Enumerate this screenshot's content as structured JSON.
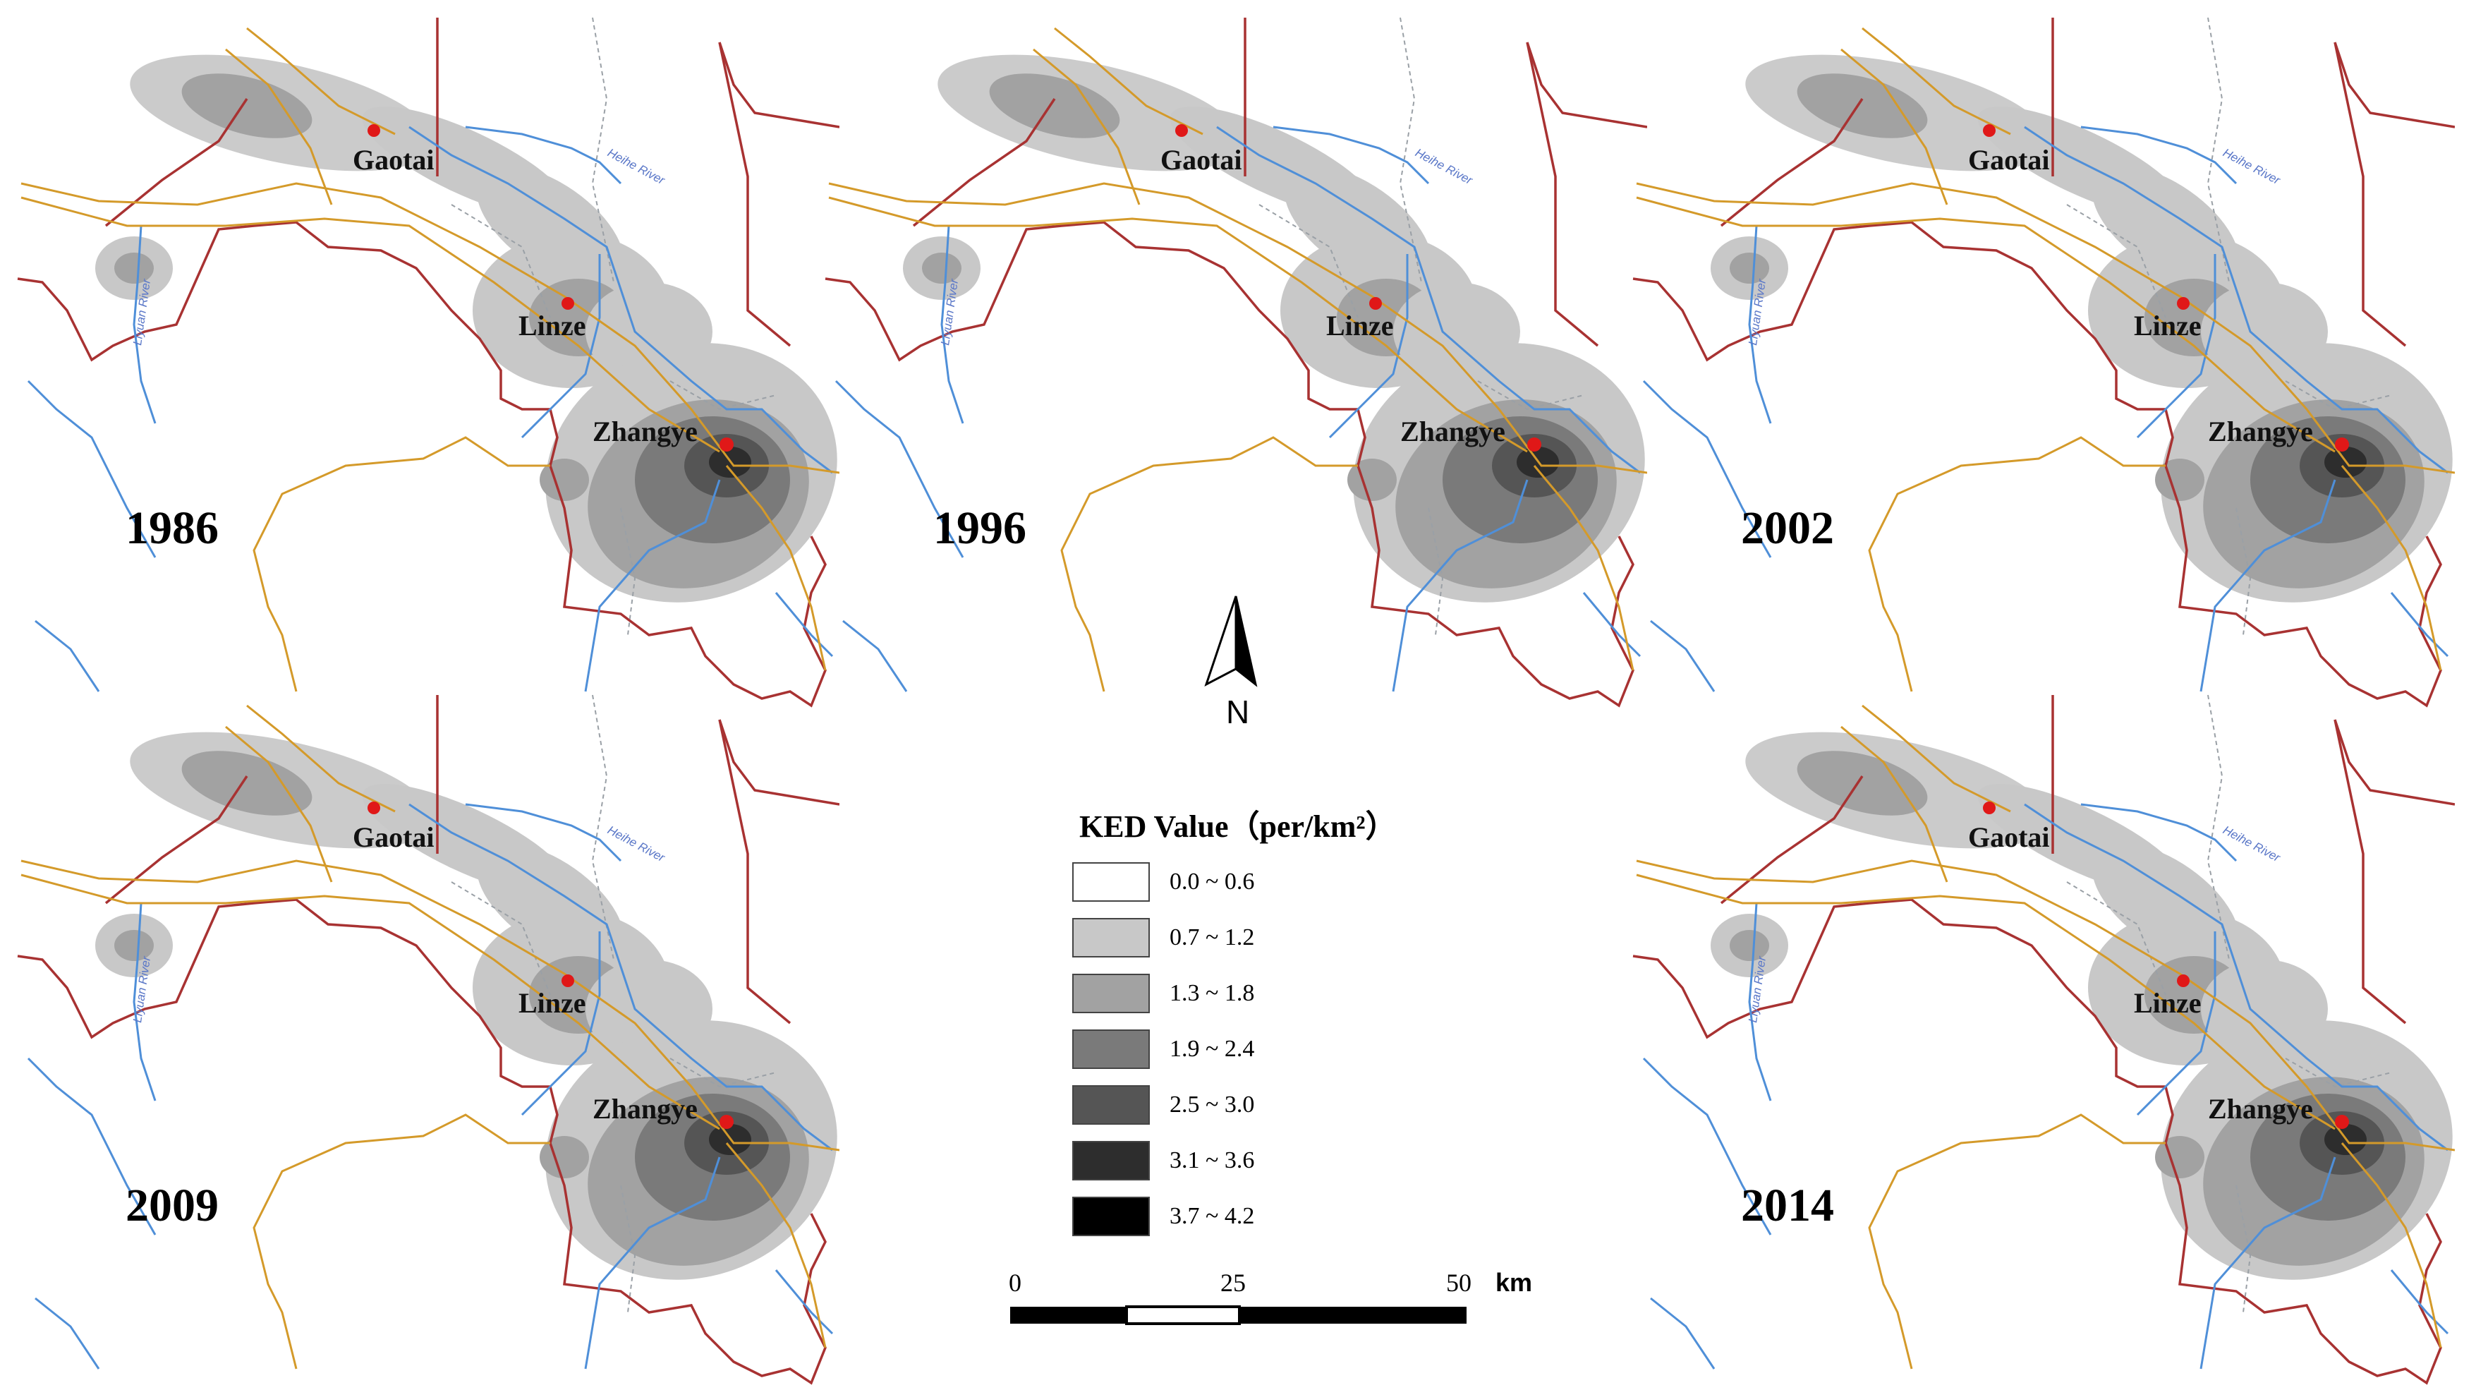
{
  "panels": [
    {
      "year": "1986"
    },
    {
      "year": "1996"
    },
    {
      "year": "2002"
    },
    {
      "year": "2009"
    },
    {
      "year": "2014"
    }
  ],
  "cities": {
    "gaotai": "Gaotai",
    "linze": "Linze",
    "zhangye": "Zhangye"
  },
  "river_labels": [
    "Heihe River",
    "Liyuan River"
  ],
  "legend": {
    "title": "KED Value（per/km²）",
    "classes": [
      {
        "label": "0.0 ~ 0.6",
        "color": "#ffffff"
      },
      {
        "label": "0.7 ~ 1.2",
        "color": "#c8c8c8"
      },
      {
        "label": "1.3 ~ 1.8",
        "color": "#a2a2a2"
      },
      {
        "label": "1.9 ~ 2.4",
        "color": "#7a7a7a"
      },
      {
        "label": "2.5 ~ 3.0",
        "color": "#555555"
      },
      {
        "label": "3.1 ~ 3.6",
        "color": "#2d2d2d"
      },
      {
        "label": "3.7 ~ 4.2",
        "color": "#000000"
      }
    ]
  },
  "north_arrow": {
    "label": "N"
  },
  "scale_bar": {
    "ticks": [
      "0",
      "25",
      "50"
    ],
    "unit": "km"
  },
  "colors": {
    "boundary": "#a83232",
    "river": "#4f8fd8",
    "road": "#d49a2a",
    "city": "#e01818",
    "minor": "#9aa0a6"
  }
}
